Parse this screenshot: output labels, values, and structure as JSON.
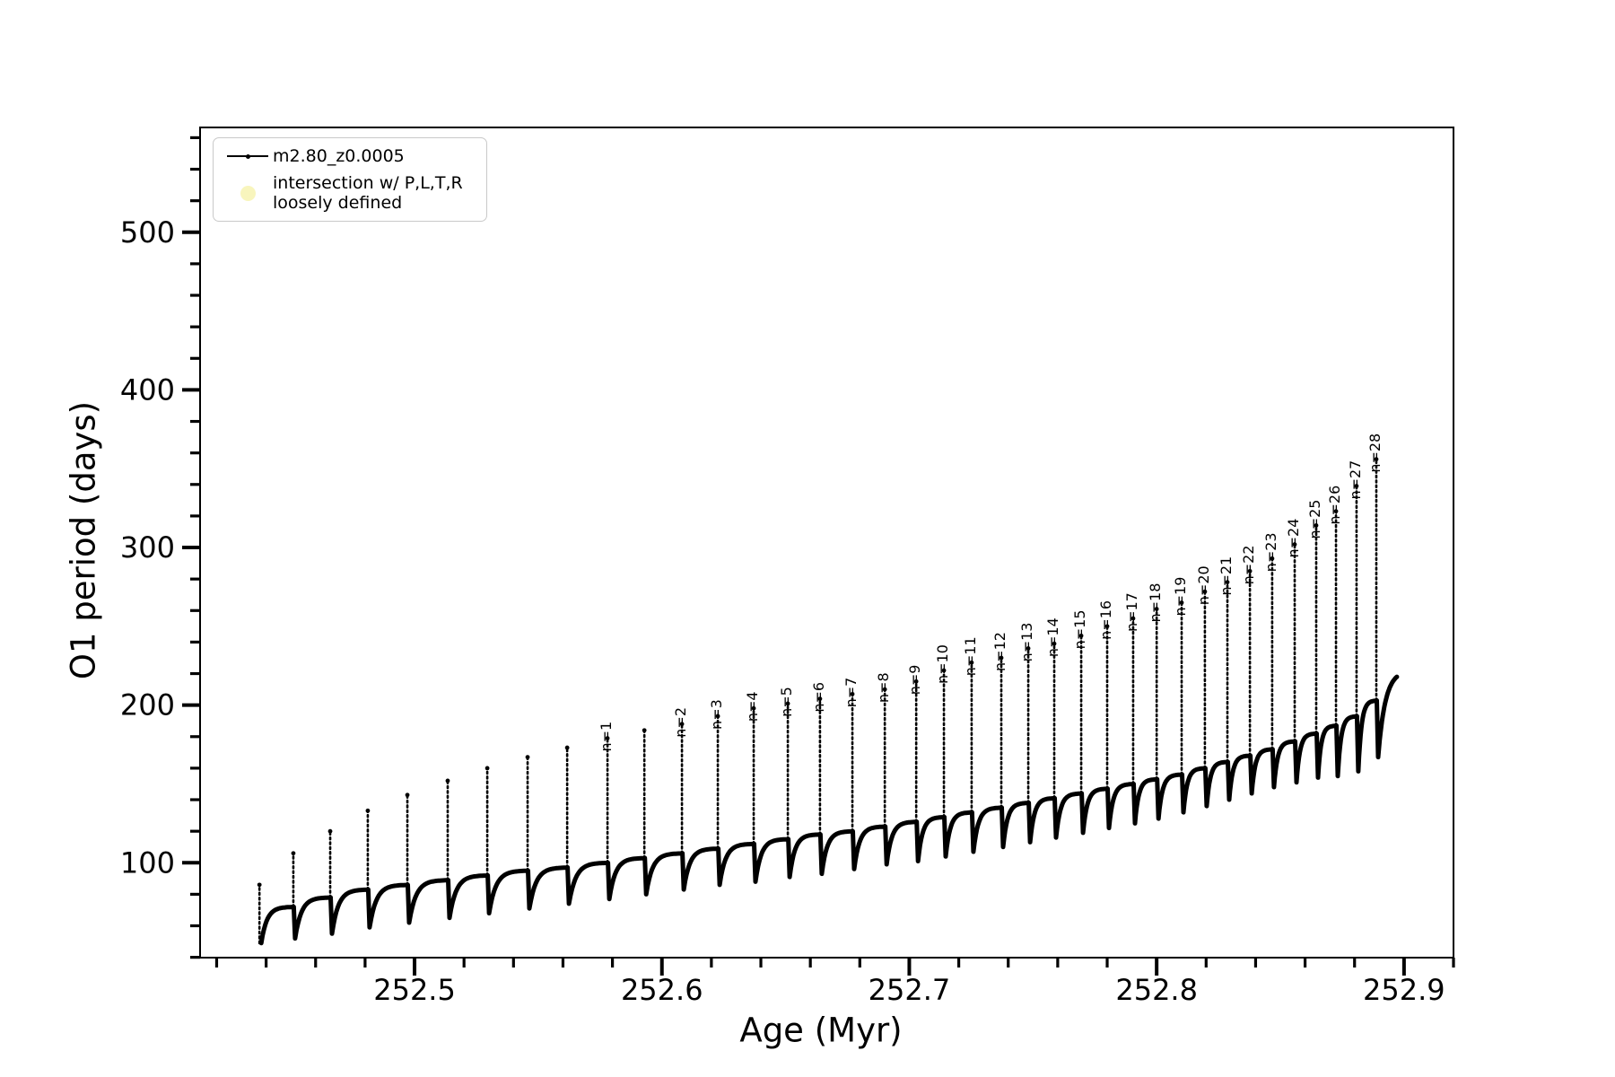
{
  "chart_data": {
    "type": "line",
    "title": "",
    "xlabel": "Age (Myr)",
    "ylabel": "O1 period (days)",
    "xlim": [
      252.4133,
      252.92
    ],
    "ylim": [
      39.8,
      566.5
    ],
    "x_major_ticks": [
      252.5,
      252.6,
      252.7,
      252.8,
      252.9
    ],
    "x_tick_labels": [
      "252.5",
      "252.6",
      "252.7",
      "252.8",
      "252.9"
    ],
    "x_minor_step": 0.02,
    "y_major_ticks": [
      100,
      200,
      300,
      400,
      500
    ],
    "y_tick_labels": [
      "100",
      "200",
      "300",
      "400",
      "500"
    ],
    "y_minor_step": 20,
    "grid": false,
    "line_color": "#000000",
    "legend_position": "upper left",
    "series_name": "m2.80_z0.0005",
    "spikes": {
      "age": [
        252.4373,
        252.451,
        252.4659,
        252.4811,
        252.4971,
        252.5134,
        252.5294,
        252.5457,
        252.5617,
        252.578,
        252.5929,
        252.6081,
        252.6226,
        252.6371,
        252.6509,
        252.6639,
        252.677,
        252.6901,
        252.7028,
        252.714,
        252.7252,
        252.7372,
        252.7481,
        252.7586,
        252.7695,
        252.78,
        252.7905,
        252.8,
        252.8101,
        252.8195,
        252.8286,
        252.8377,
        252.8467,
        252.8558,
        252.8645,
        252.8725,
        252.8808,
        252.8888
      ],
      "peak": [
        86,
        106,
        120,
        133,
        143,
        152,
        160,
        167,
        173,
        179,
        184,
        188,
        193,
        198,
        201,
        204,
        207,
        210,
        215,
        222,
        227,
        230,
        236,
        239,
        244,
        250,
        255,
        261,
        265,
        272,
        278,
        285,
        293,
        302,
        314,
        323,
        339,
        356
      ],
      "base": [
        55,
        72,
        78,
        83,
        86,
        89,
        92,
        95,
        97,
        100,
        103,
        106,
        109,
        112,
        115,
        118,
        120,
        123,
        126,
        129,
        132,
        135,
        138,
        141,
        144,
        147,
        150,
        153,
        156,
        160,
        164,
        168,
        172,
        177,
        182,
        187,
        193,
        203
      ],
      "dip": [
        49,
        52,
        55,
        59,
        62,
        65,
        68,
        71,
        74,
        77,
        80,
        83,
        86,
        88,
        91,
        93,
        96,
        99,
        101,
        104,
        107,
        110,
        113,
        116,
        119,
        122,
        125,
        128,
        132,
        136,
        140,
        144,
        148,
        151,
        154,
        155,
        158,
        167
      ],
      "label": [
        "",
        "",
        "",
        "",
        "",
        "",
        "",
        "",
        "",
        "n=1",
        "",
        "n=2",
        "n=3",
        "n=4",
        "n=5",
        "n=6",
        "n=7",
        "n=8",
        "n=9",
        "n=10",
        "n=11",
        "n=12",
        "n=13",
        "n=14",
        "n=15",
        "n=16",
        "n=17",
        "n=18",
        "n=19",
        "n=20",
        "n=21",
        "n=22",
        "n=23",
        "n=24",
        "n=25",
        "n=26",
        "n=27",
        "n=28"
      ]
    },
    "curve_end": {
      "age": 252.8971,
      "value": 215
    }
  },
  "legend": {
    "entries": [
      {
        "label": "m2.80_z0.0005",
        "marker": "line-with-dot",
        "color": "#000000"
      },
      {
        "label": "intersection w/ P,L,T,R",
        "label2": "loosely defined",
        "marker": "circle",
        "color": "#f8f5bd"
      }
    ]
  }
}
